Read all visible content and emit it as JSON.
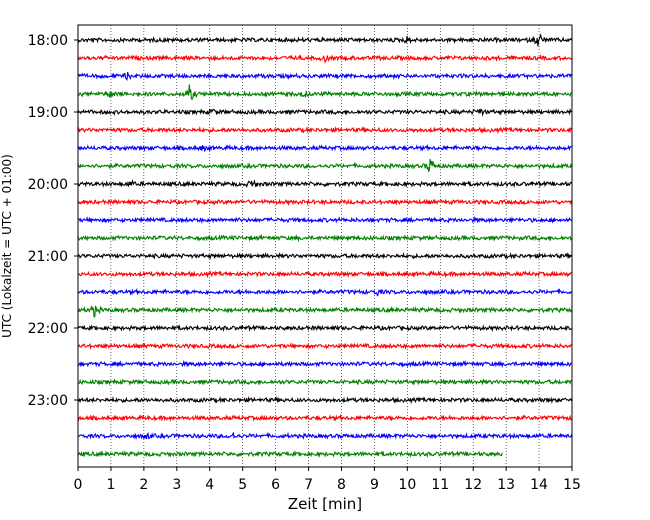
{
  "chart_data": {
    "type": "line",
    "title": "",
    "xlabel": "Zeit  [min]",
    "ylabel": "UTC (Lokalzeit = UTC + 01:00)",
    "xlim": [
      0,
      15
    ],
    "x_ticks": [
      "0",
      "1",
      "2",
      "3",
      "4",
      "5",
      "6",
      "7",
      "8",
      "9",
      "10",
      "11",
      "12",
      "13",
      "14",
      "15"
    ],
    "y_ticks": [
      "18:00",
      "19:00",
      "20:00",
      "21:00",
      "22:00",
      "23:00"
    ],
    "grid": "vertical dotted lines at each minute",
    "row_interval_min": 15,
    "trace_colors": [
      "#000000",
      "#ff0000",
      "#0000ff",
      "#008000"
    ],
    "traces": [
      {
        "start": "18:00",
        "end_min": 15,
        "color": "#000000",
        "events": [
          {
            "t": 14.0,
            "amp": 1.6
          },
          {
            "t": 10.0,
            "amp": 0.6
          }
        ]
      },
      {
        "start": "18:15",
        "end_min": 15,
        "color": "#ff0000",
        "events": [
          {
            "t": 7.5,
            "amp": 0.5
          }
        ]
      },
      {
        "start": "18:30",
        "end_min": 15,
        "color": "#0000ff",
        "events": [
          {
            "t": 1.5,
            "amp": 0.5
          }
        ]
      },
      {
        "start": "18:45",
        "end_min": 15,
        "color": "#008000",
        "events": [
          {
            "t": 1.0,
            "amp": 0.7
          },
          {
            "t": 3.4,
            "amp": 1.8
          },
          {
            "t": 6.9,
            "amp": 0.5
          }
        ]
      },
      {
        "start": "19:00",
        "end_min": 15,
        "color": "#000000",
        "events": [
          {
            "t": 4.1,
            "amp": 0.5
          },
          {
            "t": 12.2,
            "amp": 0.7
          }
        ]
      },
      {
        "start": "19:15",
        "end_min": 15,
        "color": "#ff0000",
        "events": []
      },
      {
        "start": "19:30",
        "end_min": 15,
        "color": "#0000ff",
        "events": [
          {
            "t": 3.8,
            "amp": 0.4
          }
        ]
      },
      {
        "start": "19:45",
        "end_min": 15,
        "color": "#008000",
        "events": [
          {
            "t": 10.7,
            "amp": 1.7
          }
        ]
      },
      {
        "start": "20:00",
        "end_min": 15,
        "color": "#000000",
        "events": [
          {
            "t": 1.6,
            "amp": 0.5
          },
          {
            "t": 5.3,
            "amp": 0.9
          }
        ]
      },
      {
        "start": "20:15",
        "end_min": 15,
        "color": "#ff0000",
        "events": []
      },
      {
        "start": "20:30",
        "end_min": 15,
        "color": "#0000ff",
        "events": []
      },
      {
        "start": "20:45",
        "end_min": 15,
        "color": "#008000",
        "events": []
      },
      {
        "start": "21:00",
        "end_min": 15,
        "color": "#000000",
        "events": []
      },
      {
        "start": "21:15",
        "end_min": 15,
        "color": "#ff0000",
        "events": []
      },
      {
        "start": "21:30",
        "end_min": 15,
        "color": "#0000ff",
        "events": [
          {
            "t": 9.1,
            "amp": 0.5
          }
        ]
      },
      {
        "start": "21:45",
        "end_min": 15,
        "color": "#008000",
        "events": [
          {
            "t": 0.5,
            "amp": 1.1
          }
        ]
      },
      {
        "start": "22:00",
        "end_min": 15,
        "color": "#000000",
        "events": []
      },
      {
        "start": "22:15",
        "end_min": 15,
        "color": "#ff0000",
        "events": []
      },
      {
        "start": "22:30",
        "end_min": 15,
        "color": "#0000ff",
        "events": []
      },
      {
        "start": "22:45",
        "end_min": 15,
        "color": "#008000",
        "events": []
      },
      {
        "start": "23:00",
        "end_min": 15,
        "color": "#000000",
        "events": []
      },
      {
        "start": "23:15",
        "end_min": 15,
        "color": "#ff0000",
        "events": []
      },
      {
        "start": "23:30",
        "end_min": 15,
        "color": "#0000ff",
        "events": [
          {
            "t": 2.1,
            "amp": 0.5
          },
          {
            "t": 4.7,
            "amp": 0.5
          }
        ]
      },
      {
        "start": "23:45",
        "end_min": 12.9,
        "color": "#008000",
        "events": []
      }
    ]
  }
}
